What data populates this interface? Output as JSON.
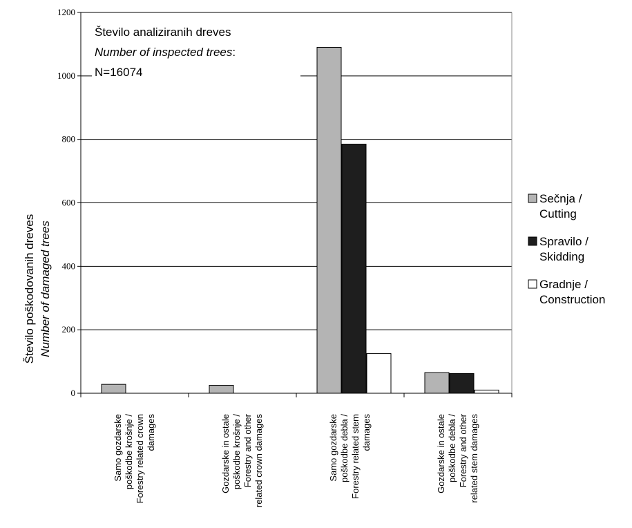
{
  "chart_data": {
    "type": "bar",
    "ylabel": "Število poškodovanih dreves",
    "ylabel_en": "Number of damaged trees",
    "ylim": [
      0,
      1200
    ],
    "yticks": [
      "0",
      "200",
      "400",
      "600",
      "800",
      "1000",
      "1200"
    ],
    "grid": true,
    "legend_position": "right",
    "annotation": {
      "line1": "Število  analiziranih dreves",
      "line2": "Number of  inspected trees",
      "line2_suffix": ":",
      "line3": "N=16074"
    },
    "categories": [
      [
        "Samo gozdarske",
        "poškodbe krošnje /",
        "Forestry related crown",
        "damages"
      ],
      [
        "Gozdarske in ostale",
        "poškodbe krošnje /",
        "Forestry and other",
        "related crown damages"
      ],
      [
        "Samo gozdarske",
        "poškodbe debla /",
        "Forestry related stem",
        "damages"
      ],
      [
        "Gozdarske in ostale",
        "poškodbe debla /",
        "Forestry and other",
        "related stem damages"
      ]
    ],
    "series": [
      {
        "name": "Sečnja /",
        "name2": "Cutting",
        "color": "#b4b4b4",
        "values": [
          28,
          25,
          1090,
          65
        ]
      },
      {
        "name": "Spravilo /",
        "name2": "Skidding",
        "color": "#1e1e1e",
        "values": [
          0,
          0,
          785,
          62
        ]
      },
      {
        "name": "Gradnje /",
        "name2": "Construction",
        "color": "#ffffff",
        "values": [
          0,
          0,
          125,
          10
        ]
      }
    ]
  }
}
